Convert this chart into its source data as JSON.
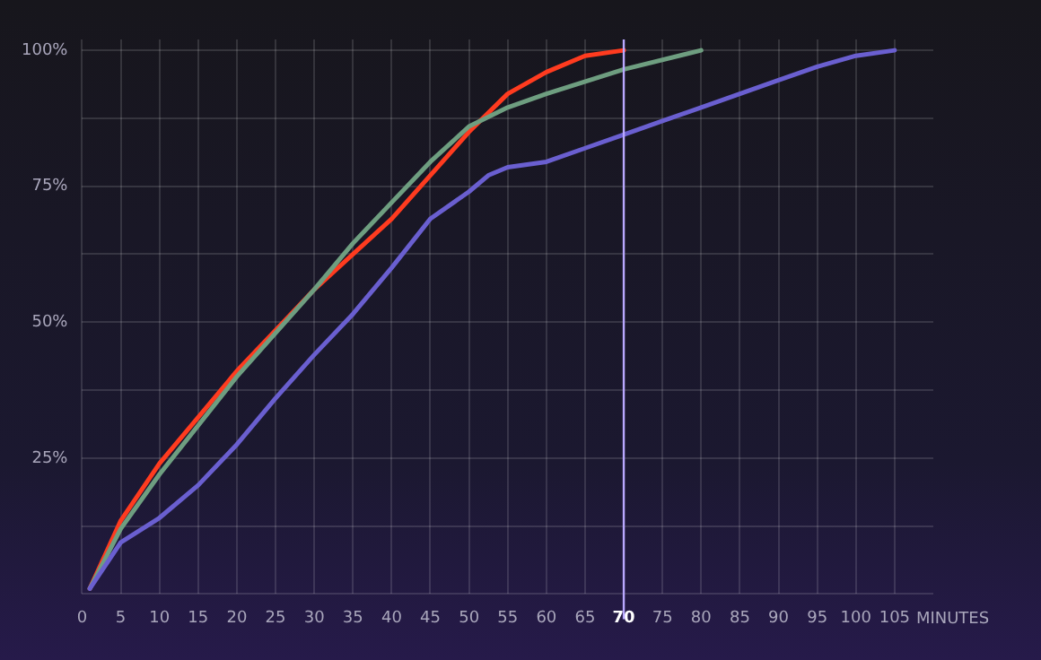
{
  "chart_data": {
    "type": "line",
    "xlabel": "MINUTES",
    "xlim": [
      0,
      110
    ],
    "xticks": [
      0,
      5,
      10,
      15,
      20,
      25,
      30,
      35,
      40,
      45,
      50,
      55,
      60,
      65,
      70,
      75,
      80,
      85,
      90,
      95,
      100,
      105
    ],
    "ylim": [
      0,
      102
    ],
    "yticks": [
      {
        "value": 0,
        "label": null
      },
      {
        "value": 12.5,
        "label": null
      },
      {
        "value": 25,
        "label": "25%"
      },
      {
        "value": 37.5,
        "label": null
      },
      {
        "value": 50,
        "label": "50%"
      },
      {
        "value": 62.5,
        "label": null
      },
      {
        "value": 75,
        "label": "75%"
      },
      {
        "value": 87.5,
        "label": null
      },
      {
        "value": 100,
        "label": "100%"
      }
    ],
    "grid": true,
    "legend": false,
    "marker": "none",
    "line_style": "solid",
    "ref_lines": [
      {
        "axis": "x",
        "value": 70,
        "color": "#b9a8ff"
      }
    ],
    "series": [
      {
        "color": "#6a5fd0",
        "x": [
          1,
          5,
          10,
          15,
          20,
          25,
          30,
          35,
          40,
          45,
          50,
          52.5,
          55,
          60,
          65,
          70,
          75,
          80,
          85,
          90,
          95,
          100,
          105
        ],
        "values": [
          1,
          9.5,
          14,
          20,
          27.5,
          36,
          44,
          51.5,
          60,
          69,
          74,
          77,
          78.5,
          79.5,
          82,
          84.5,
          87,
          89.5,
          92,
          94.5,
          97,
          99,
          100
        ]
      },
      {
        "color": "#6e9e80",
        "x": [
          1,
          5,
          10,
          20,
          30,
          35,
          40,
          45,
          50,
          55,
          60,
          70,
          80
        ],
        "values": [
          1,
          12,
          22,
          40,
          56,
          64.5,
          72,
          79.5,
          86,
          89.5,
          92,
          96.5,
          100
        ]
      },
      {
        "color": "#ff3b1f",
        "x": [
          1,
          5,
          10,
          20,
          30,
          40,
          50,
          55,
          60,
          65,
          70
        ],
        "values": [
          1,
          13.5,
          24,
          41,
          56,
          69,
          85,
          92,
          96,
          99,
          100
        ]
      }
    ]
  }
}
